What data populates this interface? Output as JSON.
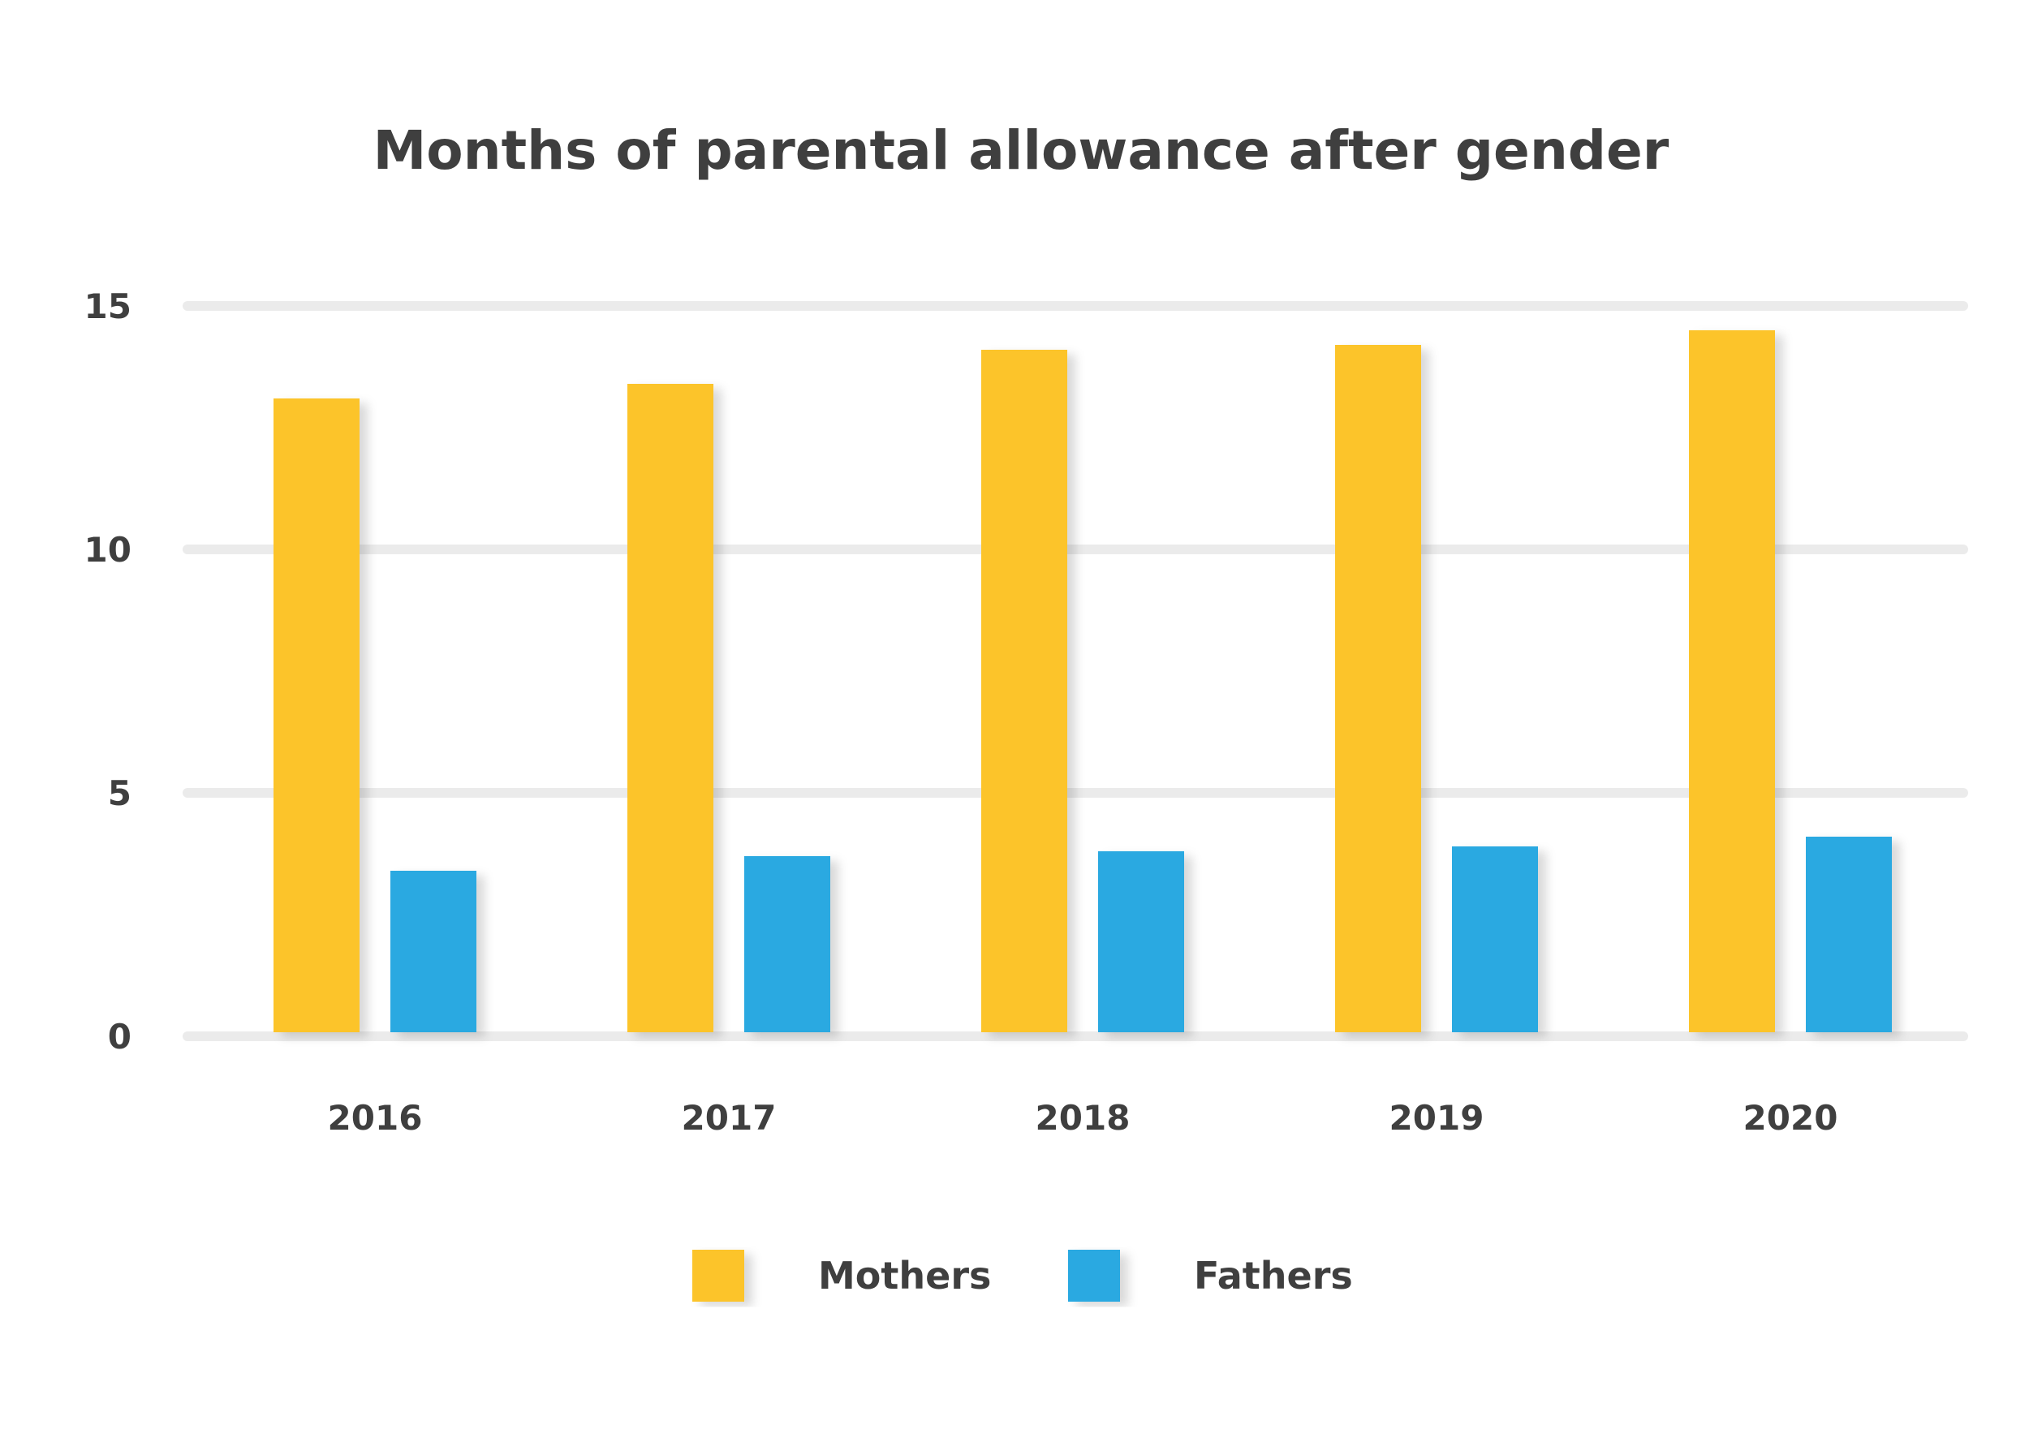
{
  "chart_data": {
    "type": "bar",
    "title": "Months of parental allowance after gender",
    "xlabel": "",
    "ylabel": "",
    "categories": [
      "2016",
      "2017",
      "2018",
      "2019",
      "2020"
    ],
    "series": [
      {
        "name": "Mothers",
        "color": "#fcc42a",
        "values": [
          13.1,
          13.4,
          14.1,
          14.2,
          14.5
        ]
      },
      {
        "name": "Fathers",
        "color": "#2ca9e1",
        "values": [
          3.4,
          3.7,
          3.8,
          3.9,
          4.1
        ]
      }
    ],
    "ylim": [
      0,
      15
    ],
    "yticks": [
      "0",
      "5",
      "10",
      "15"
    ],
    "grid": true,
    "legend_position": "bottom"
  }
}
